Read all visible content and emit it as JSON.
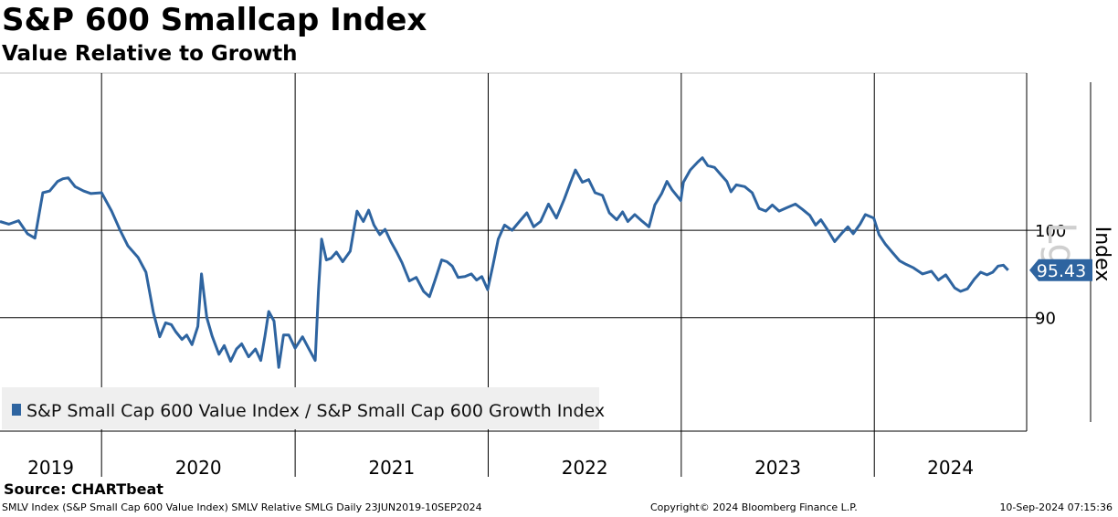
{
  "header": {
    "title": "S&P 600 Smallcap Index",
    "subtitle": "Value Relative to Growth"
  },
  "footer": {
    "source": "Source: CHARTbeat",
    "security_line": "SMLV Index (S&P Small Cap 600 Value Index) SMLV Relative SMLG  Daily 23JUN2019-10SEP2024",
    "copyright": "Copyright© 2024 Bloomberg Finance L.P.",
    "timestamp": "10-Sep-2024 07:15:36"
  },
  "colors": {
    "series": "#2e64a0",
    "legend_bg": "#efefef",
    "grid": "#000000"
  },
  "chart_data": {
    "type": "line",
    "title": "S&P 600 Smallcap Index",
    "subtitle": "Value Relative to Growth",
    "ylabel": "Index",
    "watermark": "Lg",
    "ylim": [
      77,
      118
    ],
    "xlim": [
      "2019-06-23",
      "2024-10-15"
    ],
    "yticks": [
      90,
      100
    ],
    "year_labels": [
      "2019",
      "2020",
      "2021",
      "2022",
      "2023",
      "2024"
    ],
    "year_boundaries": [
      "2020-01-01",
      "2021-01-01",
      "2022-01-01",
      "2023-01-01",
      "2024-01-01"
    ],
    "legend": {
      "position": "bottom-left",
      "entries": [
        "S&P Small Cap 600 Value Index / S&P Small Cap 600 Growth Index"
      ]
    },
    "last_value": {
      "value": 95.43,
      "label": "95.43"
    },
    "series": [
      {
        "name": "S&P Small Cap 600 Value Index / S&P Small Cap 600 Growth Index",
        "points": [
          [
            "2019-06-23",
            101.0
          ],
          [
            "2019-07-10",
            100.7
          ],
          [
            "2019-07-28",
            101.1
          ],
          [
            "2019-08-14",
            99.6
          ],
          [
            "2019-08-28",
            99.1
          ],
          [
            "2019-09-12",
            104.3
          ],
          [
            "2019-09-25",
            104.5
          ],
          [
            "2019-10-10",
            105.6
          ],
          [
            "2019-10-20",
            105.9
          ],
          [
            "2019-10-30",
            106.0
          ],
          [
            "2019-11-12",
            105.0
          ],
          [
            "2019-11-28",
            104.5
          ],
          [
            "2019-12-12",
            104.2
          ],
          [
            "2020-01-01",
            104.3
          ],
          [
            "2020-01-20",
            102.2
          ],
          [
            "2020-02-05",
            100.0
          ],
          [
            "2020-02-20",
            98.2
          ],
          [
            "2020-03-10",
            96.9
          ],
          [
            "2020-03-25",
            95.2
          ],
          [
            "2020-04-08",
            90.6
          ],
          [
            "2020-04-20",
            87.8
          ],
          [
            "2020-05-01",
            89.4
          ],
          [
            "2020-05-12",
            89.2
          ],
          [
            "2020-05-20",
            88.4
          ],
          [
            "2020-06-01",
            87.5
          ],
          [
            "2020-06-10",
            88.0
          ],
          [
            "2020-06-20",
            86.9
          ],
          [
            "2020-07-01",
            89.0
          ],
          [
            "2020-07-08",
            95.0
          ],
          [
            "2020-07-18",
            90.0
          ],
          [
            "2020-07-28",
            87.9
          ],
          [
            "2020-08-10",
            85.8
          ],
          [
            "2020-08-20",
            86.8
          ],
          [
            "2020-09-01",
            85.0
          ],
          [
            "2020-09-12",
            86.4
          ],
          [
            "2020-09-22",
            87.0
          ],
          [
            "2020-10-05",
            85.5
          ],
          [
            "2020-10-18",
            86.4
          ],
          [
            "2020-10-28",
            85.1
          ],
          [
            "2020-11-05",
            87.9
          ],
          [
            "2020-11-12",
            90.7
          ],
          [
            "2020-11-22",
            89.6
          ],
          [
            "2020-12-01",
            84.3
          ],
          [
            "2020-12-10",
            88.0
          ],
          [
            "2020-12-20",
            88.0
          ],
          [
            "2021-01-01",
            86.5
          ],
          [
            "2021-01-15",
            87.8
          ],
          [
            "2021-01-28",
            86.3
          ],
          [
            "2021-02-08",
            85.1
          ],
          [
            "2021-02-14",
            93.0
          ],
          [
            "2021-02-20",
            99.0
          ],
          [
            "2021-03-01",
            96.6
          ],
          [
            "2021-03-10",
            96.8
          ],
          [
            "2021-03-20",
            97.5
          ],
          [
            "2021-04-01",
            96.4
          ],
          [
            "2021-04-15",
            97.6
          ],
          [
            "2021-04-28",
            102.2
          ],
          [
            "2021-05-10",
            101.0
          ],
          [
            "2021-05-20",
            102.3
          ],
          [
            "2021-05-30",
            100.6
          ],
          [
            "2021-06-10",
            99.5
          ],
          [
            "2021-06-20",
            100.1
          ],
          [
            "2021-07-01",
            98.7
          ],
          [
            "2021-07-12",
            97.5
          ],
          [
            "2021-07-22",
            96.3
          ],
          [
            "2021-08-05",
            94.2
          ],
          [
            "2021-08-18",
            94.6
          ],
          [
            "2021-09-01",
            93.0
          ],
          [
            "2021-09-12",
            92.4
          ],
          [
            "2021-09-22",
            94.2
          ],
          [
            "2021-10-05",
            96.6
          ],
          [
            "2021-10-15",
            96.4
          ],
          [
            "2021-10-25",
            95.9
          ],
          [
            "2021-11-05",
            94.6
          ],
          [
            "2021-11-18",
            94.7
          ],
          [
            "2021-11-30",
            95.0
          ],
          [
            "2021-12-10",
            94.3
          ],
          [
            "2021-12-20",
            94.7
          ],
          [
            "2021-12-31",
            93.2
          ],
          [
            "2022-01-10",
            96.0
          ],
          [
            "2022-01-20",
            99.0
          ],
          [
            "2022-02-01",
            100.6
          ],
          [
            "2022-02-15",
            100.0
          ],
          [
            "2022-03-01",
            101.0
          ],
          [
            "2022-03-15",
            102.0
          ],
          [
            "2022-03-28",
            100.4
          ],
          [
            "2022-04-10",
            101.0
          ],
          [
            "2022-04-25",
            103.0
          ],
          [
            "2022-05-10",
            101.4
          ],
          [
            "2022-05-25",
            103.6
          ],
          [
            "2022-06-05",
            105.4
          ],
          [
            "2022-06-15",
            106.9
          ],
          [
            "2022-06-28",
            105.5
          ],
          [
            "2022-07-10",
            105.8
          ],
          [
            "2022-07-22",
            104.3
          ],
          [
            "2022-08-05",
            104.0
          ],
          [
            "2022-08-18",
            102.0
          ],
          [
            "2022-09-01",
            101.2
          ],
          [
            "2022-09-12",
            102.1
          ],
          [
            "2022-09-22",
            101.0
          ],
          [
            "2022-10-05",
            101.8
          ],
          [
            "2022-10-18",
            101.1
          ],
          [
            "2022-11-01",
            100.4
          ],
          [
            "2022-11-12",
            102.9
          ],
          [
            "2022-11-25",
            104.2
          ],
          [
            "2022-12-05",
            105.6
          ],
          [
            "2022-12-15",
            104.6
          ],
          [
            "2022-12-31",
            103.4
          ],
          [
            "2023-01-05",
            105.5
          ],
          [
            "2023-01-18",
            106.9
          ],
          [
            "2023-02-01",
            107.8
          ],
          [
            "2023-02-10",
            108.3
          ],
          [
            "2023-02-20",
            107.4
          ],
          [
            "2023-03-05",
            107.2
          ],
          [
            "2023-03-15",
            106.5
          ],
          [
            "2023-03-28",
            105.6
          ],
          [
            "2023-04-05",
            104.4
          ],
          [
            "2023-04-15",
            105.2
          ],
          [
            "2023-05-01",
            105.0
          ],
          [
            "2023-05-15",
            104.3
          ],
          [
            "2023-05-28",
            102.5
          ],
          [
            "2023-06-10",
            102.2
          ],
          [
            "2023-06-22",
            102.9
          ],
          [
            "2023-07-05",
            102.2
          ],
          [
            "2023-07-20",
            102.6
          ],
          [
            "2023-08-05",
            103.0
          ],
          [
            "2023-08-18",
            102.4
          ],
          [
            "2023-09-01",
            101.7
          ],
          [
            "2023-09-12",
            100.6
          ],
          [
            "2023-09-22",
            101.2
          ],
          [
            "2023-10-05",
            100.0
          ],
          [
            "2023-10-18",
            98.7
          ],
          [
            "2023-11-01",
            99.7
          ],
          [
            "2023-11-12",
            100.4
          ],
          [
            "2023-11-22",
            99.6
          ],
          [
            "2023-12-05",
            100.7
          ],
          [
            "2023-12-15",
            101.8
          ],
          [
            "2023-12-31",
            101.4
          ],
          [
            "2024-01-10",
            99.5
          ],
          [
            "2024-01-22",
            98.4
          ],
          [
            "2024-02-05",
            97.4
          ],
          [
            "2024-02-18",
            96.5
          ],
          [
            "2024-03-01",
            96.1
          ],
          [
            "2024-03-15",
            95.7
          ],
          [
            "2024-04-01",
            95.0
          ],
          [
            "2024-04-18",
            95.3
          ],
          [
            "2024-05-01",
            94.3
          ],
          [
            "2024-05-15",
            94.9
          ],
          [
            "2024-06-01",
            93.4
          ],
          [
            "2024-06-12",
            93.0
          ],
          [
            "2024-06-25",
            93.3
          ],
          [
            "2024-07-08",
            94.4
          ],
          [
            "2024-07-20",
            95.2
          ],
          [
            "2024-08-01",
            94.9
          ],
          [
            "2024-08-12",
            95.2
          ],
          [
            "2024-08-22",
            95.9
          ],
          [
            "2024-09-01",
            96.0
          ],
          [
            "2024-09-10",
            95.43
          ]
        ]
      }
    ]
  }
}
